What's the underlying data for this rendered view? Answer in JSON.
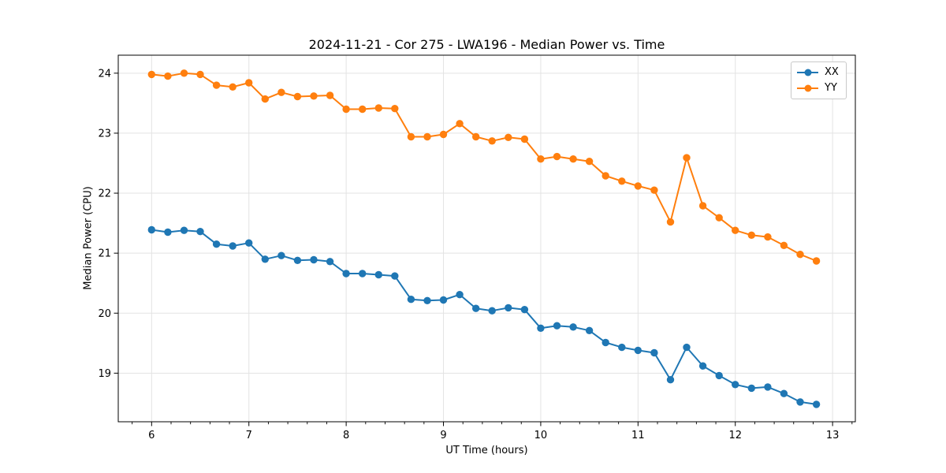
{
  "figure": {
    "title": "2024-11-21 - Cor 275 - LWA196 - Median Power vs. Time",
    "x_axis_label": "UT Time (hours)",
    "y_axis_label": "Median Power (CPU)"
  },
  "style": {
    "background": "#ffffff",
    "grid_color": "#e3e3e3",
    "spine_color": "#000000",
    "tick_color": "#000000",
    "text_color": "#000000",
    "legend_border_color": "#c9c9c9"
  },
  "chart_data": {
    "type": "line",
    "title": "2024-11-21 - Cor 275 - LWA196 - Median Power vs. Time",
    "xlabel": "UT Time (hours)",
    "ylabel": "Median Power (CPU)",
    "grid": true,
    "legend_position": "upper right",
    "marker": "circle",
    "xlim": [
      5.657,
      13.234
    ],
    "ylim": [
      18.19,
      24.3
    ],
    "x_ticks": [
      6,
      7,
      8,
      9,
      10,
      11,
      12,
      13
    ],
    "y_ticks": [
      19,
      20,
      21,
      22,
      23,
      24
    ],
    "x_minor_step": 0.2,
    "x": [
      6.0,
      6.1667,
      6.3333,
      6.5,
      6.6667,
      6.8333,
      7.0,
      7.1667,
      7.3333,
      7.5,
      7.6667,
      7.8333,
      8.0,
      8.1667,
      8.3333,
      8.5,
      8.6667,
      8.8333,
      9.0,
      9.1667,
      9.3333,
      9.5,
      9.6667,
      9.8333,
      10.0,
      10.1667,
      10.3333,
      10.5,
      10.6667,
      10.8333,
      11.0,
      11.1667,
      11.3333,
      11.5,
      11.6667,
      11.8333,
      12.0,
      12.1667,
      12.3333,
      12.5,
      12.6667,
      12.8333
    ],
    "series": [
      {
        "name": "XX",
        "color": "#1f77b4",
        "values": [
          21.39,
          21.35,
          21.38,
          21.36,
          21.15,
          21.12,
          21.17,
          20.9,
          20.96,
          20.88,
          20.89,
          20.86,
          20.66,
          20.66,
          20.64,
          20.62,
          20.23,
          20.21,
          20.22,
          20.31,
          20.08,
          20.04,
          20.09,
          20.06,
          19.75,
          19.79,
          19.77,
          19.71,
          19.51,
          19.43,
          19.38,
          19.34,
          18.89,
          19.43,
          19.12,
          18.96,
          18.81,
          18.75,
          18.77,
          18.66,
          18.52,
          18.48
        ]
      },
      {
        "name": "YY",
        "color": "#ff7f0e",
        "values": [
          23.98,
          23.95,
          24.0,
          23.98,
          23.8,
          23.77,
          23.84,
          23.57,
          23.68,
          23.61,
          23.62,
          23.63,
          23.4,
          23.4,
          23.42,
          23.41,
          22.94,
          22.94,
          22.98,
          23.16,
          22.94,
          22.87,
          22.93,
          22.9,
          22.57,
          22.61,
          22.57,
          22.53,
          22.29,
          22.2,
          22.12,
          22.05,
          21.52,
          22.59,
          21.79,
          21.59,
          21.38,
          21.3,
          21.27,
          21.13,
          20.98,
          20.87
        ]
      }
    ]
  }
}
